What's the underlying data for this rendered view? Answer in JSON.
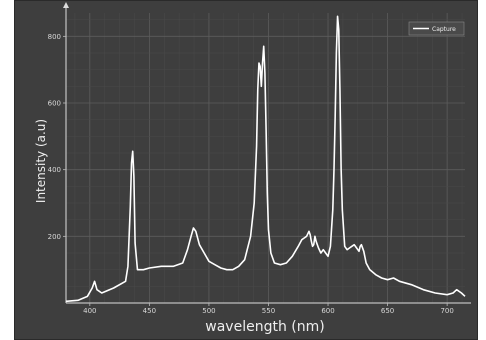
{
  "chart_data": {
    "type": "line",
    "xlabel": "wavelength (nm)",
    "ylabel": "Intensity (a.u)",
    "xlim": [
      380,
      715
    ],
    "ylim": [
      0,
      870
    ],
    "x_ticks": [
      400,
      450,
      500,
      550,
      600,
      650,
      700
    ],
    "y_ticks": [
      200,
      400,
      600,
      800
    ],
    "grid": true,
    "legend_position": "top-right",
    "background": "#3e3e3e",
    "line_color": "#ffffff",
    "series": [
      {
        "name": "Capture",
        "x": [
          380,
          390,
          398,
          402,
          404,
          406,
          410,
          420,
          430,
          432,
          434,
          435,
          436,
          437,
          438,
          440,
          445,
          450,
          460,
          470,
          478,
          482,
          485,
          487,
          489,
          492,
          496,
          500,
          505,
          510,
          515,
          520,
          525,
          530,
          535,
          538,
          540,
          541,
          542,
          543,
          544,
          545,
          546,
          547,
          548,
          549,
          550,
          552,
          555,
          560,
          565,
          570,
          575,
          578,
          580,
          582,
          584,
          585,
          586,
          587,
          588,
          589,
          590,
          592,
          594,
          596,
          598,
          600,
          602,
          604,
          605,
          606,
          607,
          608,
          609,
          610,
          611,
          612,
          614,
          616,
          618,
          620,
          622,
          624,
          626,
          627,
          628,
          630,
          632,
          635,
          640,
          645,
          650,
          655,
          660,
          670,
          680,
          690,
          700,
          705,
          708,
          712,
          715
        ],
        "y": [
          5,
          8,
          20,
          45,
          65,
          40,
          30,
          45,
          65,
          110,
          290,
          420,
          455,
          380,
          180,
          100,
          100,
          105,
          110,
          110,
          120,
          160,
          200,
          225,
          215,
          175,
          150,
          125,
          115,
          105,
          100,
          100,
          110,
          130,
          200,
          300,
          470,
          640,
          720,
          710,
          650,
          720,
          770,
          690,
          520,
          330,
          220,
          150,
          120,
          115,
          120,
          140,
          170,
          190,
          195,
          200,
          215,
          205,
          185,
          170,
          175,
          200,
          185,
          165,
          150,
          160,
          150,
          140,
          170,
          280,
          400,
          560,
          750,
          860,
          820,
          640,
          400,
          280,
          170,
          160,
          165,
          170,
          175,
          165,
          155,
          170,
          175,
          155,
          120,
          100,
          85,
          75,
          70,
          75,
          65,
          55,
          40,
          30,
          25,
          30,
          40,
          30,
          20
        ]
      }
    ]
  }
}
